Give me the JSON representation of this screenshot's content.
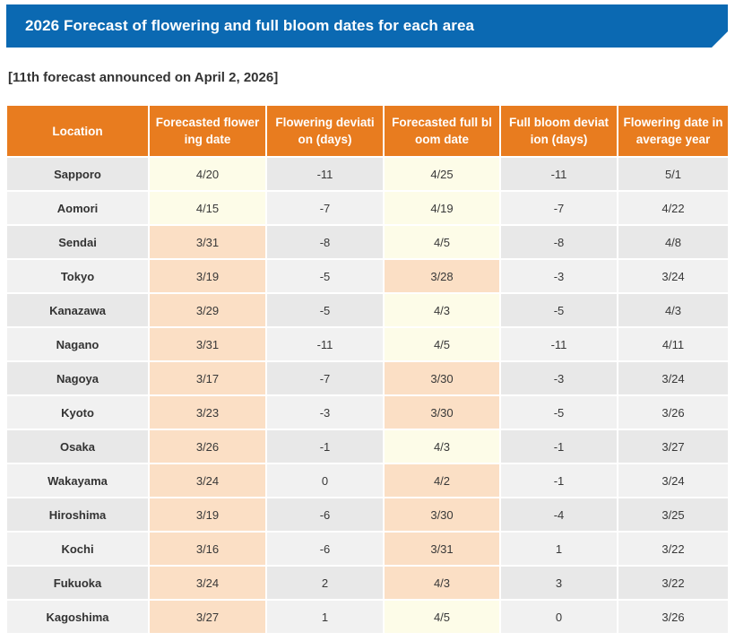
{
  "banner": {
    "title": "2026 Forecast of flowering and full bloom dates for each area"
  },
  "subtitle": "[11th forecast announced on April 2, 2026]",
  "colors": {
    "banner_blue": "#0b69b2",
    "header_orange": "#e87c1f",
    "highlight_peach": "#fbdfc5",
    "highlight_cream": "#fdfce8",
    "row_gray_dark": "#e8e8e8",
    "row_gray_light": "#f1f1f1"
  },
  "table": {
    "columns": [
      {
        "key": "location",
        "label_lines": [
          "Location"
        ]
      },
      {
        "key": "forecasted-flowering-date",
        "label_lines": [
          "Forecasted flower",
          "ing date"
        ]
      },
      {
        "key": "flowering-deviation",
        "label_lines": [
          "Flowering deviati",
          "on (days)"
        ]
      },
      {
        "key": "forecasted-full-bloom-date",
        "label_lines": [
          "Forecasted full bl",
          "oom date"
        ]
      },
      {
        "key": "full-bloom-deviation",
        "label_lines": [
          "Full bloom deviat",
          "ion (days)"
        ]
      },
      {
        "key": "flowering-date-average-year",
        "label_lines": [
          "Flowering date in",
          "average year"
        ]
      }
    ],
    "rows": [
      {
        "location": "Sapporo",
        "flowering_date": "4/20",
        "flowering_highlight": "cream",
        "flowering_deviation": "-11",
        "full_bloom_date": "4/25",
        "full_bloom_highlight": "cream",
        "full_bloom_deviation": "-11",
        "average_year_date": "5/1"
      },
      {
        "location": "Aomori",
        "flowering_date": "4/15",
        "flowering_highlight": "cream",
        "flowering_deviation": "-7",
        "full_bloom_date": "4/19",
        "full_bloom_highlight": "cream",
        "full_bloom_deviation": "-7",
        "average_year_date": "4/22"
      },
      {
        "location": "Sendai",
        "flowering_date": "3/31",
        "flowering_highlight": "peach",
        "flowering_deviation": "-8",
        "full_bloom_date": "4/5",
        "full_bloom_highlight": "cream",
        "full_bloom_deviation": "-8",
        "average_year_date": "4/8"
      },
      {
        "location": "Tokyo",
        "flowering_date": "3/19",
        "flowering_highlight": "peach",
        "flowering_deviation": "-5",
        "full_bloom_date": "3/28",
        "full_bloom_highlight": "peach",
        "full_bloom_deviation": "-3",
        "average_year_date": "3/24"
      },
      {
        "location": "Kanazawa",
        "flowering_date": "3/29",
        "flowering_highlight": "peach",
        "flowering_deviation": "-5",
        "full_bloom_date": "4/3",
        "full_bloom_highlight": "cream",
        "full_bloom_deviation": "-5",
        "average_year_date": "4/3"
      },
      {
        "location": "Nagano",
        "flowering_date": "3/31",
        "flowering_highlight": "peach",
        "flowering_deviation": "-11",
        "full_bloom_date": "4/5",
        "full_bloom_highlight": "cream",
        "full_bloom_deviation": "-11",
        "average_year_date": "4/11"
      },
      {
        "location": "Nagoya",
        "flowering_date": "3/17",
        "flowering_highlight": "peach",
        "flowering_deviation": "-7",
        "full_bloom_date": "3/30",
        "full_bloom_highlight": "peach",
        "full_bloom_deviation": "-3",
        "average_year_date": "3/24"
      },
      {
        "location": "Kyoto",
        "flowering_date": "3/23",
        "flowering_highlight": "peach",
        "flowering_deviation": "-3",
        "full_bloom_date": "3/30",
        "full_bloom_highlight": "peach",
        "full_bloom_deviation": "-5",
        "average_year_date": "3/26"
      },
      {
        "location": "Osaka",
        "flowering_date": "3/26",
        "flowering_highlight": "peach",
        "flowering_deviation": "-1",
        "full_bloom_date": "4/3",
        "full_bloom_highlight": "cream",
        "full_bloom_deviation": "-1",
        "average_year_date": "3/27"
      },
      {
        "location": "Wakayama",
        "flowering_date": "3/24",
        "flowering_highlight": "peach",
        "flowering_deviation": "0",
        "full_bloom_date": "4/2",
        "full_bloom_highlight": "peach",
        "full_bloom_deviation": "-1",
        "average_year_date": "3/24"
      },
      {
        "location": "Hiroshima",
        "flowering_date": "3/19",
        "flowering_highlight": "peach",
        "flowering_deviation": "-6",
        "full_bloom_date": "3/30",
        "full_bloom_highlight": "peach",
        "full_bloom_deviation": "-4",
        "average_year_date": "3/25"
      },
      {
        "location": "Kochi",
        "flowering_date": "3/16",
        "flowering_highlight": "peach",
        "flowering_deviation": "-6",
        "full_bloom_date": "3/31",
        "full_bloom_highlight": "peach",
        "full_bloom_deviation": "1",
        "average_year_date": "3/22"
      },
      {
        "location": "Fukuoka",
        "flowering_date": "3/24",
        "flowering_highlight": "peach",
        "flowering_deviation": "2",
        "full_bloom_date": "4/3",
        "full_bloom_highlight": "peach",
        "full_bloom_deviation": "3",
        "average_year_date": "3/22"
      },
      {
        "location": "Kagoshima",
        "flowering_date": "3/27",
        "flowering_highlight": "peach",
        "flowering_deviation": "1",
        "full_bloom_date": "4/5",
        "full_bloom_highlight": "cream",
        "full_bloom_deviation": "0",
        "average_year_date": "3/26"
      }
    ]
  }
}
